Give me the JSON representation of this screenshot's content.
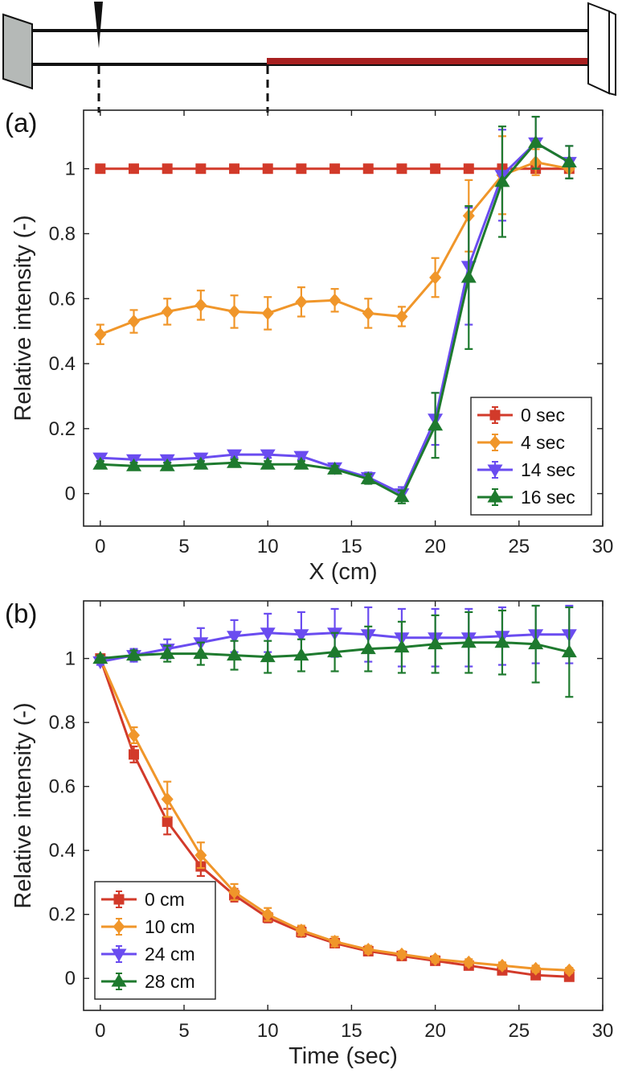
{
  "colors": {
    "red": "#d23a2a",
    "orange": "#f0962a",
    "purple": "#6a4cf0",
    "green": "#1e7a2e",
    "tube_highlight": "#a82020",
    "end_cap": "#b5b9b7"
  },
  "chart_data": [
    {
      "type": "line",
      "panel_label": "(a)",
      "xlabel": "X (cm)",
      "ylabel": "Relative intensity (-)",
      "xlim": [
        -1,
        30
      ],
      "ylim": [
        -0.1,
        1.18
      ],
      "xticks": [
        "0",
        "5",
        "10",
        "15",
        "20",
        "25",
        "30"
      ],
      "yticks": [
        "0",
        "0.2",
        "0.4",
        "0.6",
        "0.8",
        "1"
      ],
      "legend_position": "bottom-right",
      "x": [
        0,
        2,
        4,
        6,
        8,
        10,
        12,
        14,
        16,
        18,
        20,
        22,
        24,
        26,
        28
      ],
      "series": [
        {
          "name": "0 sec",
          "color": "red",
          "marker": "square",
          "values": [
            1,
            1,
            1,
            1,
            1,
            1,
            1,
            1,
            1,
            1,
            1,
            1,
            1,
            1,
            1
          ],
          "errors": [
            0,
            0,
            0,
            0,
            0,
            0,
            0,
            0,
            0,
            0,
            0,
            0,
            0,
            0,
            0
          ]
        },
        {
          "name": "4 sec",
          "color": "orange",
          "marker": "diamond",
          "values": [
            0.49,
            0.53,
            0.56,
            0.58,
            0.56,
            0.555,
            0.59,
            0.595,
            0.555,
            0.545,
            0.665,
            0.855,
            0.98,
            1.02,
            1.0
          ],
          "errors": [
            0.03,
            0.035,
            0.04,
            0.045,
            0.05,
            0.05,
            0.045,
            0.035,
            0.045,
            0.03,
            0.06,
            0.11,
            0.12,
            0.04,
            0.03
          ]
        },
        {
          "name": "14 sec",
          "color": "purple",
          "marker": "triangle-down",
          "values": [
            0.11,
            0.105,
            0.105,
            0.11,
            0.12,
            0.12,
            0.115,
            0.08,
            0.05,
            0.0,
            0.23,
            0.7,
            0.98,
            1.08,
            1.02
          ],
          "errors": [
            0.01,
            0.01,
            0.01,
            0.01,
            0.01,
            0.01,
            0.01,
            0.01,
            0.015,
            0.02,
            0.08,
            0.18,
            0.14,
            0.08,
            0.05
          ]
        },
        {
          "name": "16 sec",
          "color": "green",
          "marker": "triangle-up",
          "values": [
            0.09,
            0.085,
            0.085,
            0.09,
            0.095,
            0.09,
            0.09,
            0.075,
            0.045,
            -0.01,
            0.21,
            0.665,
            0.96,
            1.08,
            1.02
          ],
          "errors": [
            0.01,
            0.01,
            0.01,
            0.01,
            0.01,
            0.01,
            0.01,
            0.01,
            0.015,
            0.02,
            0.1,
            0.22,
            0.17,
            0.08,
            0.05
          ]
        }
      ]
    },
    {
      "type": "line",
      "panel_label": "(b)",
      "xlabel": "Time (sec)",
      "ylabel": "Relative intensity (-)",
      "xlim": [
        -1,
        30
      ],
      "ylim": [
        -0.1,
        1.18
      ],
      "xticks": [
        "0",
        "5",
        "10",
        "15",
        "20",
        "25",
        "30"
      ],
      "yticks": [
        "0",
        "0.2",
        "0.4",
        "0.6",
        "0.8",
        "1"
      ],
      "legend_position": "bottom-left",
      "x": [
        0,
        2,
        4,
        6,
        8,
        10,
        12,
        14,
        16,
        18,
        20,
        22,
        24,
        26,
        28
      ],
      "series": [
        {
          "name": "0 cm",
          "color": "red",
          "marker": "square",
          "values": [
            1,
            0.7,
            0.49,
            0.35,
            0.26,
            0.19,
            0.145,
            0.11,
            0.085,
            0.07,
            0.055,
            0.04,
            0.025,
            0.01,
            0.005
          ],
          "errors": [
            0,
            0.025,
            0.04,
            0.03,
            0.02,
            0.015,
            0.015,
            0.012,
            0.012,
            0.01,
            0.01,
            0.01,
            0.01,
            0.008,
            0.008
          ]
        },
        {
          "name": "10 cm",
          "color": "orange",
          "marker": "diamond",
          "values": [
            1,
            0.76,
            0.56,
            0.385,
            0.27,
            0.2,
            0.15,
            0.115,
            0.09,
            0.075,
            0.06,
            0.05,
            0.04,
            0.03,
            0.025
          ],
          "errors": [
            0,
            0.025,
            0.055,
            0.04,
            0.025,
            0.02,
            0.015,
            0.015,
            0.012,
            0.01,
            0.01,
            0.01,
            0.01,
            0.01,
            0.008
          ]
        },
        {
          "name": "24 cm",
          "color": "purple",
          "marker": "triangle-down",
          "values": [
            0.99,
            1.01,
            1.03,
            1.05,
            1.07,
            1.08,
            1.075,
            1.08,
            1.075,
            1.065,
            1.065,
            1.065,
            1.07,
            1.075,
            1.075
          ],
          "errors": [
            0.01,
            0.02,
            0.03,
            0.045,
            0.05,
            0.06,
            0.07,
            0.075,
            0.085,
            0.09,
            0.09,
            0.09,
            0.09,
            0.09,
            0.09
          ]
        },
        {
          "name": "28 cm",
          "color": "green",
          "marker": "triangle-up",
          "values": [
            1.0,
            1.01,
            1.015,
            1.015,
            1.01,
            1.005,
            1.01,
            1.02,
            1.03,
            1.035,
            1.045,
            1.05,
            1.05,
            1.045,
            1.02
          ],
          "errors": [
            0.01,
            0.015,
            0.025,
            0.035,
            0.045,
            0.05,
            0.05,
            0.06,
            0.07,
            0.08,
            0.09,
            0.095,
            0.1,
            0.12,
            0.14
          ]
        }
      ]
    }
  ]
}
